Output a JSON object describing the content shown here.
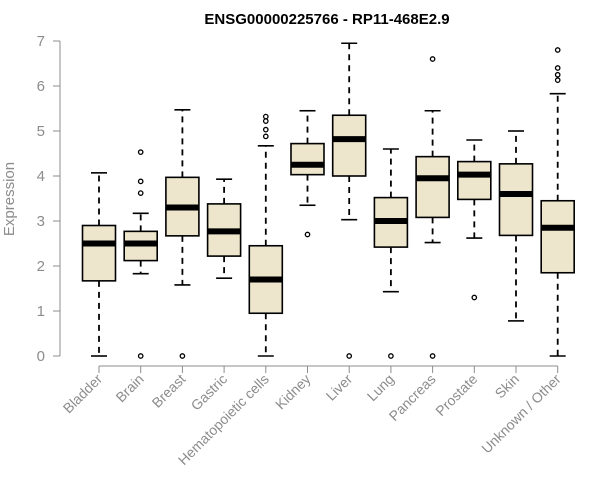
{
  "chart_data": {
    "type": "boxplot",
    "title": "ENSG00000225766 - RP11-468E2.9",
    "xlabel": "",
    "ylabel": "Expression",
    "ylim": [
      0,
      7
    ],
    "yticks": [
      "0",
      "1",
      "2",
      "3",
      "4",
      "5",
      "6",
      "7"
    ],
    "grid": false,
    "box_fill": "#ede6cc",
    "categories": [
      "Bladder",
      "Brain",
      "Breast",
      "Gastric",
      "Hematopoietic cells",
      "Kidney",
      "Liver",
      "Lung",
      "Pancreas",
      "Prostate",
      "Skin",
      "Unknown / Other"
    ],
    "boxes": [
      {
        "min": 0.0,
        "q1": 1.67,
        "median": 2.5,
        "q3": 2.9,
        "max": 4.07,
        "outliers": []
      },
      {
        "min": 1.83,
        "q1": 2.12,
        "median": 2.5,
        "q3": 2.77,
        "max": 3.17,
        "outliers": [
          0.0,
          3.62,
          3.88,
          4.53
        ]
      },
      {
        "min": 1.58,
        "q1": 2.67,
        "median": 3.3,
        "q3": 3.97,
        "max": 5.47,
        "outliers": [
          0.0
        ]
      },
      {
        "min": 1.73,
        "q1": 2.22,
        "median": 2.77,
        "q3": 3.38,
        "max": 3.93,
        "outliers": []
      },
      {
        "min": 0.0,
        "q1": 0.95,
        "median": 1.7,
        "q3": 2.45,
        "max": 4.67,
        "outliers": [
          4.88,
          5.03,
          5.22,
          5.32
        ]
      },
      {
        "min": 3.35,
        "q1": 4.03,
        "median": 4.25,
        "q3": 4.72,
        "max": 5.45,
        "outliers": [
          2.7
        ]
      },
      {
        "min": 3.03,
        "q1": 4.0,
        "median": 4.82,
        "q3": 5.35,
        "max": 6.95,
        "outliers": [
          0.0
        ]
      },
      {
        "min": 1.43,
        "q1": 2.42,
        "median": 3.0,
        "q3": 3.52,
        "max": 4.6,
        "outliers": [
          0.0
        ]
      },
      {
        "min": 2.52,
        "q1": 3.08,
        "median": 3.95,
        "q3": 4.43,
        "max": 5.45,
        "outliers": [
          0.0,
          6.6
        ]
      },
      {
        "min": 2.62,
        "q1": 3.48,
        "median": 4.03,
        "q3": 4.32,
        "max": 4.8,
        "outliers": [
          1.3
        ]
      },
      {
        "min": 0.78,
        "q1": 2.68,
        "median": 3.6,
        "q3": 4.27,
        "max": 5.0,
        "outliers": []
      },
      {
        "min": 0.0,
        "q1": 1.85,
        "median": 2.85,
        "q3": 3.45,
        "max": 5.83,
        "outliers": [
          6.13,
          6.25,
          6.4,
          6.8
        ]
      }
    ]
  }
}
